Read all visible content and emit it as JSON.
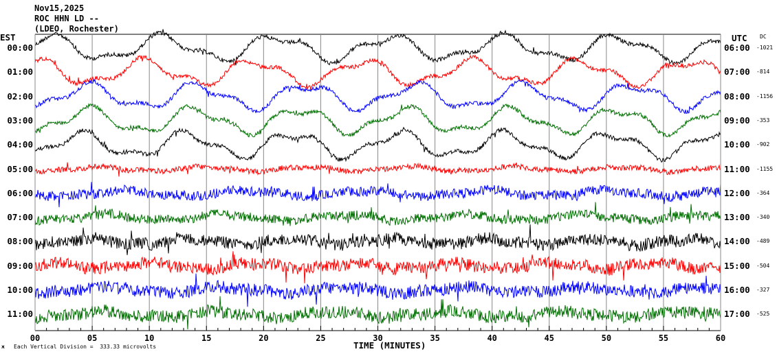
{
  "header": {
    "date": "Nov15,2025",
    "station": "ROC HHN LD --",
    "network": "(LDEO, Rochester)"
  },
  "chart_data": {
    "type": "line",
    "title": "Nov15,2025 ROC HHN LD -- (LDEO, Rochester)",
    "xlabel": "TIME (MINUTES)",
    "xlim": [
      0,
      60
    ],
    "x_ticks": [
      "00",
      "05",
      "10",
      "15",
      "20",
      "25",
      "30",
      "35",
      "40",
      "45",
      "50",
      "55",
      "60"
    ],
    "left_axis_label": "EST",
    "right_axis_label": "UTC",
    "dc_label": "DC",
    "scale_note": "Each Vertical Division =  333.33 microvolts",
    "grid": true,
    "traces": [
      {
        "est": "00:00",
        "utc": "06:00",
        "dc": "-1021",
        "color": "#000000"
      },
      {
        "est": "01:00",
        "utc": "07:00",
        "dc": "-814",
        "color": "#ff0000"
      },
      {
        "est": "02:00",
        "utc": "08:00",
        "dc": "-1156",
        "color": "#0000ff"
      },
      {
        "est": "03:00",
        "utc": "09:00",
        "dc": "-353",
        "color": "#007000"
      },
      {
        "est": "04:00",
        "utc": "10:00",
        "dc": "-902",
        "color": "#000000"
      },
      {
        "est": "05:00",
        "utc": "11:00",
        "dc": "-1155",
        "color": "#ff0000"
      },
      {
        "est": "06:00",
        "utc": "12:00",
        "dc": "-364",
        "color": "#0000ff"
      },
      {
        "est": "07:00",
        "utc": "13:00",
        "dc": "-340",
        "color": "#007000"
      },
      {
        "est": "08:00",
        "utc": "14:00",
        "dc": "-489",
        "color": "#000000"
      },
      {
        "est": "09:00",
        "utc": "15:00",
        "dc": "-504",
        "color": "#ff0000"
      },
      {
        "est": "10:00",
        "utc": "16:00",
        "dc": "-327",
        "color": "#0000ff"
      },
      {
        "est": "11:00",
        "utc": "17:00",
        "dc": "-525",
        "color": "#007000"
      }
    ]
  }
}
